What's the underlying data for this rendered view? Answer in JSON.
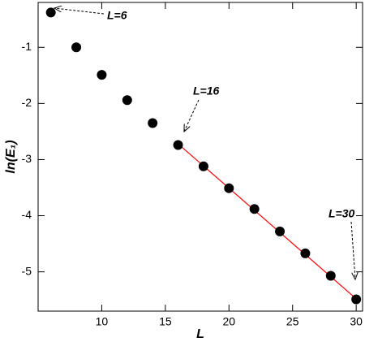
{
  "chart_data": {
    "type": "scatter",
    "xlabel": "L",
    "ylabel": "ln(E₁)",
    "xlim": [
      5,
      30.5
    ],
    "ylim": [
      -5.7,
      -0.2
    ],
    "xticks": [
      10,
      15,
      20,
      25,
      30
    ],
    "yticks": [
      -5,
      -4,
      -3,
      -2,
      -1
    ],
    "series": [
      {
        "type": "scatter",
        "color": "#000000",
        "x": [
          6,
          8,
          10,
          12,
          14,
          16,
          18,
          20,
          22,
          24,
          26,
          28,
          30
        ],
        "values": [
          -0.38,
          -1.0,
          -1.49,
          -1.94,
          -2.35,
          -2.74,
          -3.12,
          -3.51,
          -3.88,
          -4.28,
          -4.67,
          -5.07,
          -5.49
        ]
      },
      {
        "type": "line",
        "color": "#ff0000",
        "x": [
          16,
          30
        ],
        "values": [
          -2.72,
          -5.48
        ]
      }
    ],
    "annotations": [
      "L=6",
      "L=16",
      "L=30"
    ]
  }
}
